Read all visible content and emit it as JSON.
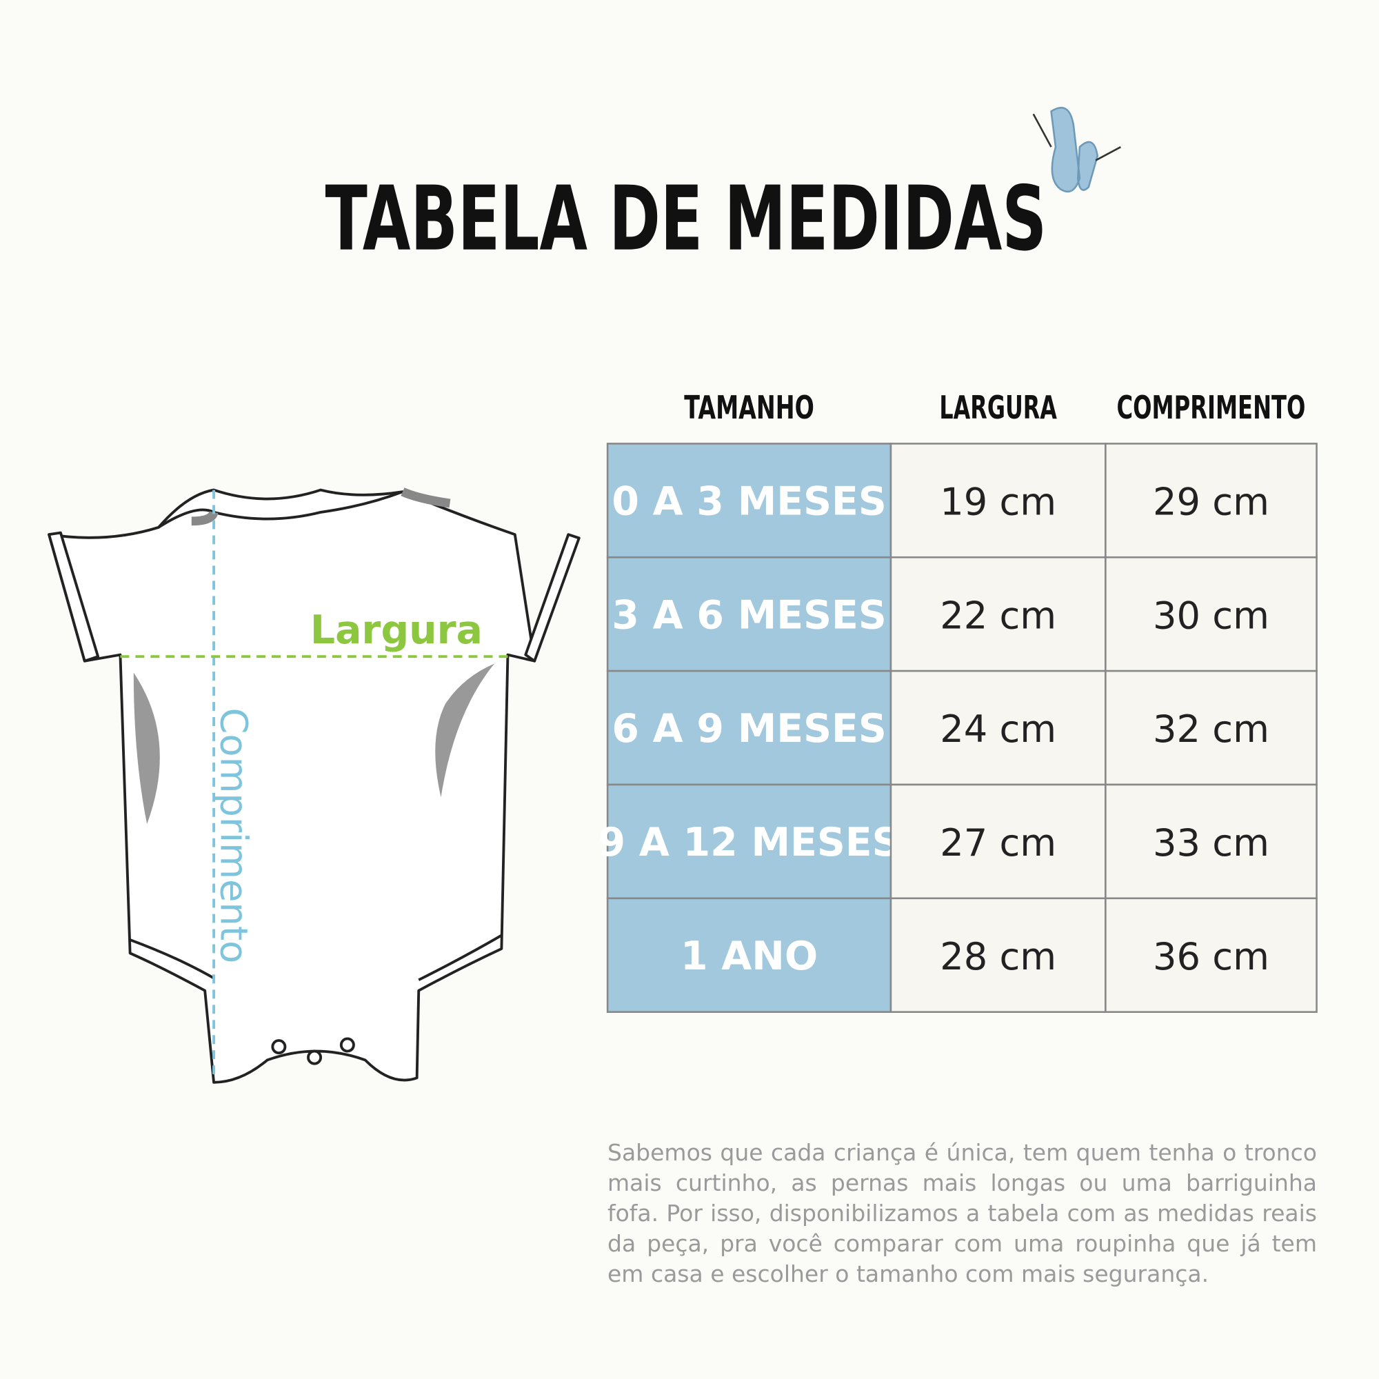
{
  "header": {
    "title": "TABELA DE MEDIDAS"
  },
  "table": {
    "columns": [
      "TAMANHO",
      "LARGURA",
      "COMPRIMENTO"
    ],
    "rows": [
      [
        "0 A 3 MESES",
        "19 cm",
        "29 cm"
      ],
      [
        "3 A 6 MESES",
        "22 cm",
        "30 cm"
      ],
      [
        "6 A 9 MESES",
        "24 cm",
        "32 cm"
      ],
      [
        "9 A 12 MESES",
        "27 cm",
        "33 cm"
      ],
      [
        "1 ANO",
        "28 cm",
        "36 cm"
      ]
    ]
  },
  "diagram": {
    "width_label": "Largura",
    "length_label": "Comprimento"
  },
  "note": "Sabemos que cada criança é única, tem quem tenha o tronco mais curtinho, as pernas mais longas ou uma barriguinha fofa. Por isso, disponibilizamos a tabela com as medidas reais da peça, pra você comparar com uma roupinha que já tem em casa e escolher o tamanho com mais segurança."
}
